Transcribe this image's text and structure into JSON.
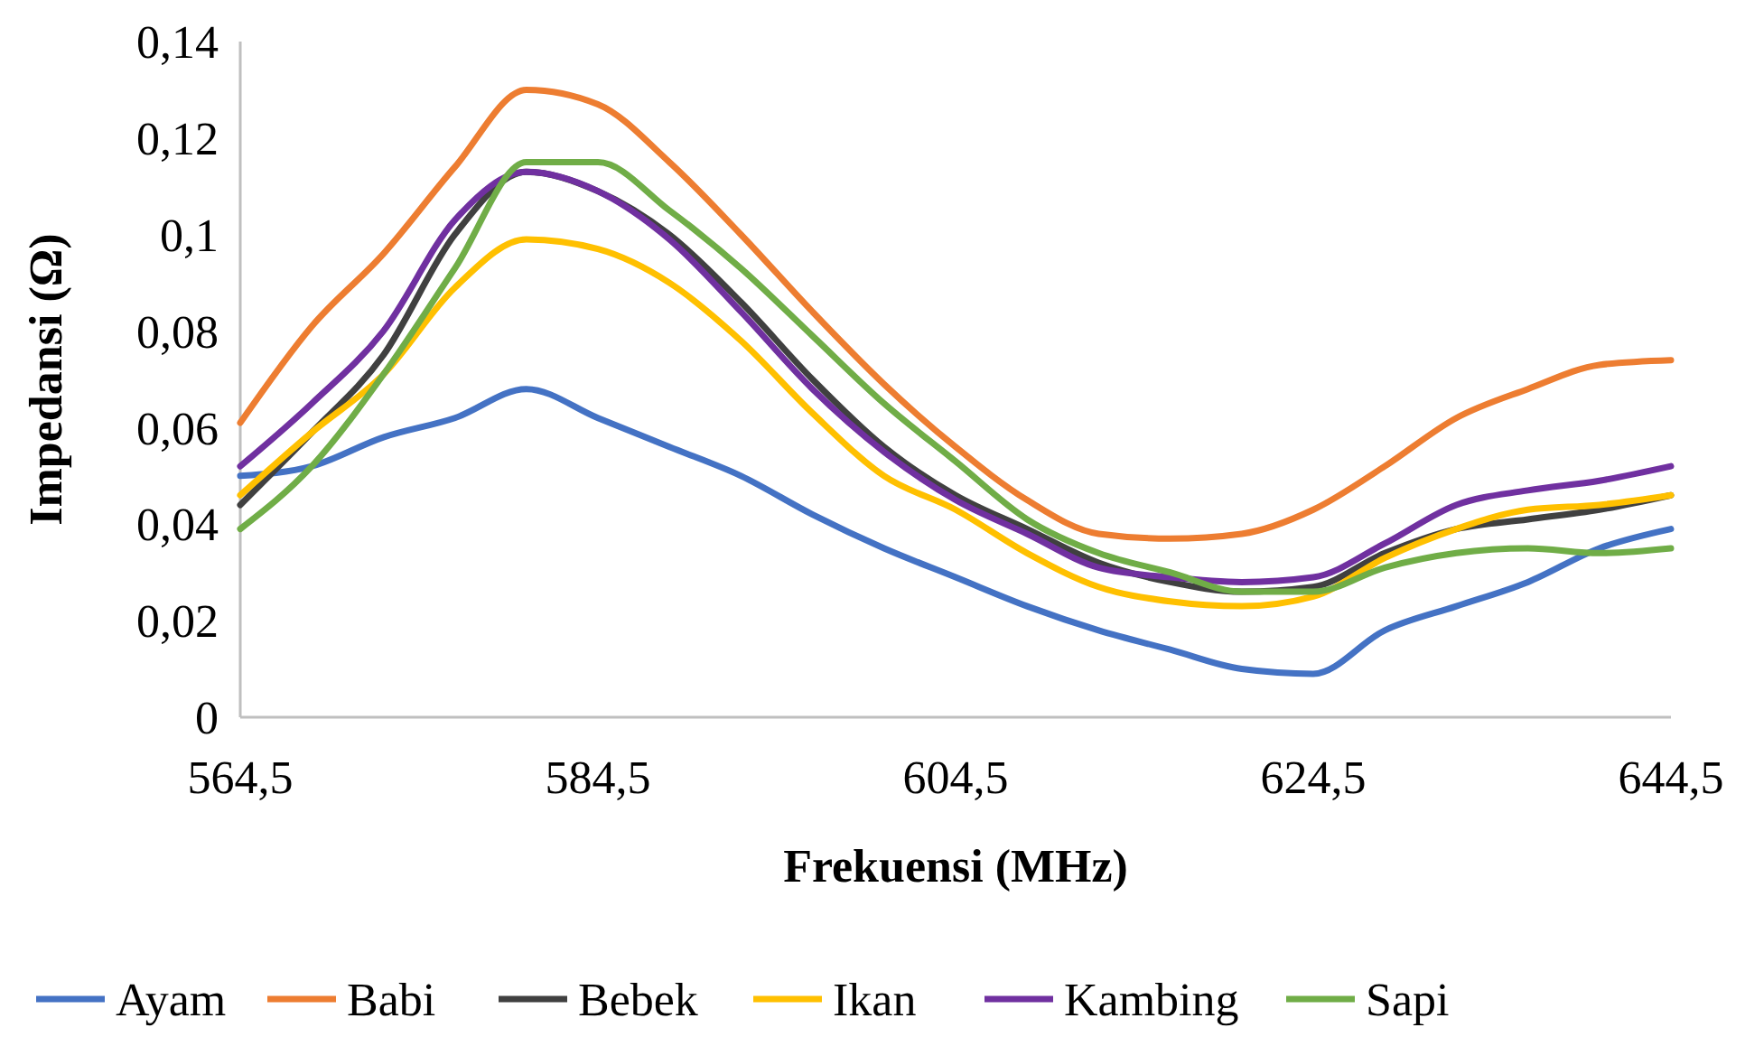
{
  "chart_data": {
    "type": "line",
    "xlabel": "Frekuensi (MHz)",
    "ylabel": "Impedansi (Ω)",
    "x": [
      564.5,
      568.5,
      572.5,
      576.5,
      580.5,
      584.5,
      588.5,
      592.5,
      596.5,
      600.5,
      604.5,
      608.5,
      612.5,
      616.5,
      620.5,
      624.5,
      628.5,
      632.5,
      636.5,
      640.5,
      644.5
    ],
    "series": [
      {
        "name": "Ayam",
        "color": "#4472c4",
        "values": [
          0.05,
          0.052,
          0.058,
          0.062,
          0.068,
          0.062,
          0.056,
          0.05,
          0.042,
          0.035,
          0.029,
          0.023,
          0.018,
          0.014,
          0.01,
          0.009,
          0.018,
          0.023,
          0.028,
          0.035,
          0.039
        ]
      },
      {
        "name": "Babi",
        "color": "#ed7d31",
        "values": [
          0.061,
          0.081,
          0.096,
          0.114,
          0.13,
          0.127,
          0.115,
          0.1,
          0.084,
          0.069,
          0.056,
          0.045,
          0.038,
          0.037,
          0.038,
          0.043,
          0.052,
          0.062,
          0.068,
          0.073,
          0.074
        ]
      },
      {
        "name": "Bebek",
        "color": "#404040",
        "values": [
          0.044,
          0.059,
          0.075,
          0.1,
          0.113,
          0.109,
          0.1,
          0.086,
          0.07,
          0.056,
          0.046,
          0.039,
          0.032,
          0.028,
          0.026,
          0.027,
          0.034,
          0.039,
          0.041,
          0.043,
          0.046
        ]
      },
      {
        "name": "Ikan",
        "color": "#ffc000",
        "values": [
          0.046,
          0.059,
          0.071,
          0.089,
          0.099,
          0.097,
          0.09,
          0.078,
          0.063,
          0.05,
          0.043,
          0.034,
          0.027,
          0.024,
          0.023,
          0.025,
          0.033,
          0.039,
          0.043,
          0.044,
          0.046
        ]
      },
      {
        "name": "Kambing",
        "color": "#7030a0",
        "values": [
          0.052,
          0.065,
          0.08,
          0.103,
          0.113,
          0.109,
          0.099,
          0.084,
          0.068,
          0.055,
          0.045,
          0.038,
          0.031,
          0.029,
          0.028,
          0.029,
          0.036,
          0.044,
          0.047,
          0.049,
          0.052
        ]
      },
      {
        "name": "Sapi",
        "color": "#70ad47",
        "values": [
          0.039,
          0.052,
          0.071,
          0.093,
          0.115,
          0.115,
          0.105,
          0.093,
          0.079,
          0.065,
          0.053,
          0.041,
          0.034,
          0.03,
          0.026,
          0.026,
          0.031,
          0.034,
          0.035,
          0.034,
          0.035
        ]
      }
    ],
    "xlim": [
      564.5,
      644.5
    ],
    "xticks": [
      {
        "value": 564.5,
        "label": "564,5"
      },
      {
        "value": 584.5,
        "label": "584,5"
      },
      {
        "value": 604.5,
        "label": "604,5"
      },
      {
        "value": 624.5,
        "label": "624,5"
      },
      {
        "value": 644.5,
        "label": "644,5"
      }
    ],
    "ylim": [
      0,
      0.14
    ],
    "yticks": [
      0,
      {
        "value": 0.02,
        "label": "0,02"
      },
      {
        "value": 0.04,
        "label": "0,04"
      },
      {
        "value": 0.06,
        "label": "0,06"
      },
      {
        "value": 0.08,
        "label": "0,08"
      },
      {
        "value": 0.1,
        "label": "0,1"
      },
      {
        "value": 0.12,
        "label": "0,12"
      },
      {
        "value": 0.14,
        "label": "0,14"
      }
    ],
    "grid": false,
    "legend": "bottom",
    "marker": "none",
    "line_style": "solid"
  }
}
